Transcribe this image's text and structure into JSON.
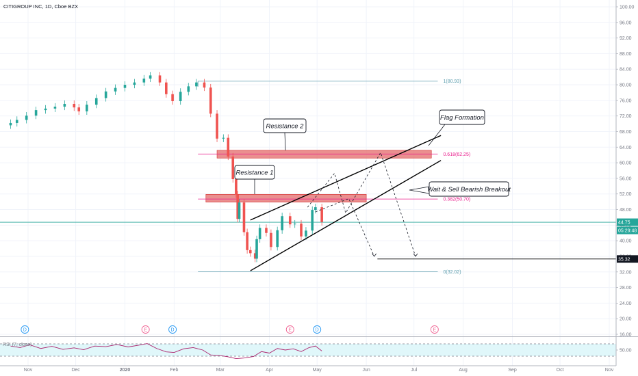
{
  "header": {
    "title": "CITIGROUP INC, 1D, Cboe BZX"
  },
  "chart_data": {
    "type": "candlestick",
    "title": "CITIGROUP INC, 1D, Cboe BZX",
    "ylim": [
      16,
      100
    ],
    "y_ticks": [
      "100.00",
      "96.00",
      "92.00",
      "88.00",
      "84.00",
      "80.00",
      "76.00",
      "72.00",
      "68.00",
      "64.00",
      "60.00",
      "56.00",
      "52.00",
      "48.00",
      "44.00",
      "40.00",
      "36.00",
      "32.00",
      "28.00",
      "24.00",
      "20.00",
      "16.00"
    ],
    "x_ticks": [
      "Nov",
      "Dec",
      "2020",
      "Feb",
      "Mar",
      "Apr",
      "May",
      "Jun",
      "Jul",
      "Aug",
      "Sep",
      "Oct",
      "Nov"
    ],
    "x_tick_dates": [
      "2019-11-01",
      "2019-12-01",
      "2020-01-01",
      "2020-02-01",
      "2020-03-01",
      "2020-04-01",
      "2020-05-01",
      "2020-06-01",
      "2020-07-01",
      "2020-08-01",
      "2020-09-01",
      "2020-10-01",
      "2020-11-01"
    ],
    "closes": [
      {
        "date": "2019-10-21",
        "close": 70.2
      },
      {
        "date": "2019-10-25",
        "close": 71.0
      },
      {
        "date": "2019-10-31",
        "close": 72.1
      },
      {
        "date": "2019-11-06",
        "close": 73.5
      },
      {
        "date": "2019-11-12",
        "close": 73.9
      },
      {
        "date": "2019-11-18",
        "close": 74.4
      },
      {
        "date": "2019-11-24",
        "close": 75.1
      },
      {
        "date": "2019-11-30",
        "close": 74.2
      },
      {
        "date": "2019-12-03",
        "close": 73.2
      },
      {
        "date": "2019-12-08",
        "close": 74.9
      },
      {
        "date": "2019-12-14",
        "close": 76.6
      },
      {
        "date": "2019-12-20",
        "close": 78.3
      },
      {
        "date": "2019-12-26",
        "close": 79.2
      },
      {
        "date": "2020-01-01",
        "close": 80.0
      },
      {
        "date": "2020-01-07",
        "close": 80.6
      },
      {
        "date": "2020-01-13",
        "close": 81.6
      },
      {
        "date": "2020-01-17",
        "close": 82.4
      },
      {
        "date": "2020-01-23",
        "close": 80.6
      },
      {
        "date": "2020-01-27",
        "close": 77.6
      },
      {
        "date": "2020-01-31",
        "close": 75.8
      },
      {
        "date": "2020-02-05",
        "close": 78.2
      },
      {
        "date": "2020-02-10",
        "close": 79.6
      },
      {
        "date": "2020-02-15",
        "close": 80.6
      },
      {
        "date": "2020-02-20",
        "close": 79.3
      },
      {
        "date": "2020-02-24",
        "close": 72.6
      },
      {
        "date": "2020-02-28",
        "close": 66.2
      },
      {
        "date": "2020-03-03",
        "close": 66.4
      },
      {
        "date": "2020-03-06",
        "close": 61.6
      },
      {
        "date": "2020-03-09",
        "close": 55.8
      },
      {
        "date": "2020-03-11",
        "close": 51.9
      },
      {
        "date": "2020-03-12",
        "close": 45.6
      },
      {
        "date": "2020-03-13",
        "close": 49.8
      },
      {
        "date": "2020-03-16",
        "close": 42.2
      },
      {
        "date": "2020-03-18",
        "close": 37.6
      },
      {
        "date": "2020-03-20",
        "close": 36.8
      },
      {
        "date": "2020-03-23",
        "close": 35.4
      },
      {
        "date": "2020-03-24",
        "close": 40.4
      },
      {
        "date": "2020-03-26",
        "close": 43.3
      },
      {
        "date": "2020-03-30",
        "close": 42.0
      },
      {
        "date": "2020-04-02",
        "close": 38.4
      },
      {
        "date": "2020-04-06",
        "close": 42.7
      },
      {
        "date": "2020-04-09",
        "close": 46.3
      },
      {
        "date": "2020-04-14",
        "close": 44.2
      },
      {
        "date": "2020-04-17",
        "close": 44.4
      },
      {
        "date": "2020-04-21",
        "close": 41.1
      },
      {
        "date": "2020-04-24",
        "close": 42.6
      },
      {
        "date": "2020-04-28",
        "close": 47.9
      },
      {
        "date": "2020-04-30",
        "close": 48.6
      },
      {
        "date": "2020-05-04",
        "close": 44.8
      }
    ],
    "fibonacci": [
      {
        "label": "1(80.93)",
        "price": 80.93,
        "color": "#5b9cad"
      },
      {
        "label": "0.618(62.25)",
        "price": 62.25,
        "color": "#e91e8c"
      },
      {
        "label": "0.382(50.70)",
        "price": 50.7,
        "color": "#e91e8c"
      },
      {
        "label": "0(32.02)",
        "price": 32.02,
        "color": "#5b9cad"
      }
    ],
    "resistance_zones": [
      {
        "name": "Resistance 2",
        "from": "2020-02-28",
        "to": "2020-07-12",
        "low": 61.2,
        "high": 63.2
      },
      {
        "name": "Resistance 1",
        "from": "2020-02-21",
        "to": "2020-06-01",
        "low": 49.9,
        "high": 51.9
      }
    ],
    "channel": {
      "upper": [
        {
          "date": "2020-03-20",
          "price": 45.3
        },
        {
          "date": "2020-07-18",
          "price": 67.0
        }
      ],
      "lower": [
        {
          "date": "2020-03-20",
          "price": 32.3
        },
        {
          "date": "2020-07-18",
          "price": 60.6
        }
      ]
    },
    "projection": [
      {
        "date": "2020-04-25",
        "price": 48.6
      },
      {
        "date": "2020-05-12",
        "price": 57.3
      },
      {
        "date": "2020-05-19",
        "price": 47.1
      },
      {
        "date": "2020-06-10",
        "price": 62.6
      },
      {
        "date": "2020-07-02",
        "price": 36.0
      }
    ],
    "projection_alt": [
      {
        "date": "2020-04-30",
        "price": 47.4
      },
      {
        "date": "2020-05-21",
        "price": 50.8
      },
      {
        "date": "2020-06-06",
        "price": 36.0
      }
    ],
    "current_price_line": {
      "price": 44.75,
      "label": "44.75",
      "sub_label": "05:29:48",
      "color": "#26a69a"
    },
    "target_line": {
      "price": 35.32,
      "label": "35.32",
      "from": "2020-06-08"
    },
    "annotations": [
      {
        "text": "Resistance 2"
      },
      {
        "text": "Resistance 1"
      },
      {
        "text": "Flag Formation"
      },
      {
        "text": "Wait & Sell Bearish Breakout"
      }
    ],
    "events": [
      {
        "date": "2019-10-30",
        "letter": "D",
        "color": "#2196f3"
      },
      {
        "date": "2020-01-14",
        "letter": "E",
        "color": "#f06292"
      },
      {
        "date": "2020-01-31",
        "letter": "D",
        "color": "#2196f3"
      },
      {
        "date": "2020-04-14",
        "letter": "E",
        "color": "#f06292"
      },
      {
        "date": "2020-05-01",
        "letter": "D",
        "color": "#2196f3"
      },
      {
        "date": "2020-07-14",
        "letter": "E",
        "color": "#f06292"
      }
    ],
    "rsi": {
      "label": "RSI (7, close)",
      "tick": "50.00",
      "color": "#ab1f6a",
      "band": [
        30,
        70
      ],
      "values": [
        {
          "date": "2019-10-21",
          "value": 63
        },
        {
          "date": "2019-10-27",
          "value": 58
        },
        {
          "date": "2019-11-02",
          "value": 67
        },
        {
          "date": "2019-11-09",
          "value": 55
        },
        {
          "date": "2019-11-16",
          "value": 62
        },
        {
          "date": "2019-11-23",
          "value": 52
        },
        {
          "date": "2019-11-30",
          "value": 57
        },
        {
          "date": "2019-12-06",
          "value": 51
        },
        {
          "date": "2019-12-13",
          "value": 63
        },
        {
          "date": "2019-12-20",
          "value": 61
        },
        {
          "date": "2019-12-27",
          "value": 68
        },
        {
          "date": "2020-01-03",
          "value": 60
        },
        {
          "date": "2020-01-10",
          "value": 66
        },
        {
          "date": "2020-01-15",
          "value": 71
        },
        {
          "date": "2020-01-21",
          "value": 55
        },
        {
          "date": "2020-01-27",
          "value": 44
        },
        {
          "date": "2020-02-01",
          "value": 42
        },
        {
          "date": "2020-02-07",
          "value": 54
        },
        {
          "date": "2020-02-13",
          "value": 58
        },
        {
          "date": "2020-02-19",
          "value": 50
        },
        {
          "date": "2020-02-24",
          "value": 34
        },
        {
          "date": "2020-03-01",
          "value": 32
        },
        {
          "date": "2020-03-06",
          "value": 28
        },
        {
          "date": "2020-03-11",
          "value": 22
        },
        {
          "date": "2020-03-16",
          "value": 24
        },
        {
          "date": "2020-03-22",
          "value": 29
        },
        {
          "date": "2020-03-27",
          "value": 45
        },
        {
          "date": "2020-04-01",
          "value": 40
        },
        {
          "date": "2020-04-06",
          "value": 55
        },
        {
          "date": "2020-04-11",
          "value": 50
        },
        {
          "date": "2020-04-16",
          "value": 54
        },
        {
          "date": "2020-04-21",
          "value": 45
        },
        {
          "date": "2020-04-26",
          "value": 58
        },
        {
          "date": "2020-04-30",
          "value": 63
        },
        {
          "date": "2020-05-04",
          "value": 47
        }
      ]
    },
    "colors": {
      "up": "#26a69a",
      "down": "#ef5350",
      "zone_fill": "#e57373",
      "channel": "#000000"
    }
  }
}
